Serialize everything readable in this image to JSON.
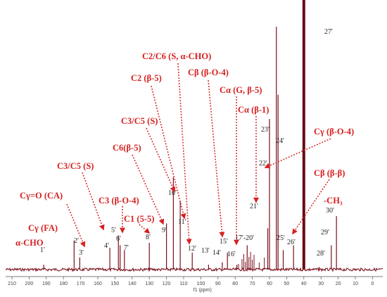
{
  "colors": {
    "spectrum": "#7a0f1c",
    "annotation": "#d62020",
    "peak_label": "#222222",
    "axis": "#555555",
    "solvent": "#6b0a12"
  },
  "chart_data": {
    "type": "line",
    "title": "",
    "xlabel": "f1 (ppm)",
    "ylabel": "",
    "x_reversed": true,
    "xlim": [
      215,
      -5
    ],
    "ticks": [
      210,
      200,
      190,
      180,
      170,
      160,
      150,
      140,
      130,
      120,
      110,
      100,
      90,
      80,
      70,
      60,
      50,
      40,
      30,
      20,
      10,
      0
    ],
    "solvent_peak": {
      "ppm": 40.0,
      "label": "27'"
    },
    "peaks": [
      {
        "label": "1'",
        "ppm": 191.5,
        "height": 0.02
      },
      {
        "label": "2'",
        "ppm": 173.8,
        "height": 0.12
      },
      {
        "label": "3'",
        "ppm": 170.5,
        "height": 0.05
      },
      {
        "label": "4'",
        "ppm": 153.0,
        "height": 0.09
      },
      {
        "label": "5'",
        "ppm": 148.0,
        "height": 0.14
      },
      {
        "label": "6'",
        "ppm": 147.0,
        "height": 0.1
      },
      {
        "label": "7'",
        "ppm": 144.5,
        "height": 0.08
      },
      {
        "label": "8'",
        "ppm": 130.0,
        "height": 0.11
      },
      {
        "label": "9'",
        "ppm": 120.0,
        "height": 0.19
      },
      {
        "label": "10'",
        "ppm": 116.0,
        "height": 0.38
      },
      {
        "label": "11'",
        "ppm": 112.0,
        "height": 0.28
      },
      {
        "label": "12'",
        "ppm": 105.0,
        "height": 0.07
      },
      {
        "label": "13'",
        "ppm": 95.5,
        "height": 0.02
      },
      {
        "label": "14'",
        "ppm": 87.5,
        "height": 0.03
      },
      {
        "label": "15'",
        "ppm": 84.5,
        "height": 0.07
      },
      {
        "label": "16'",
        "ppm": 79.0,
        "height": 0.02
      },
      {
        "label": "17'-20'",
        "ppm": 73.0,
        "height": 0.1
      },
      {
        "label": "21'",
        "ppm": 61.0,
        "height": 0.17
      },
      {
        "label": "22'",
        "ppm": 60.0,
        "height": 0.62
      },
      {
        "label": "23'",
        "ppm": 56.0,
        "height": 1.0
      },
      {
        "label": "24'",
        "ppm": 55.0,
        "height": 0.72
      },
      {
        "label": "25'",
        "ppm": 52.0,
        "height": 0.08
      },
      {
        "label": "26'",
        "ppm": 46.0,
        "height": 0.1
      },
      {
        "label": "28'",
        "ppm": 31.0,
        "height": 0.01
      },
      {
        "label": "29'",
        "ppm": 24.0,
        "height": 0.1
      },
      {
        "label": "30'",
        "ppm": 21.0,
        "height": 0.22
      }
    ],
    "annotations": [
      {
        "text": "α-CHO",
        "target_ppm": 191.5
      },
      {
        "text": "Cγ (FA)",
        "target_ppm": 173.8
      },
      {
        "text": "Cγ=O (CA)",
        "target_ppm": 170.5
      },
      {
        "text": "C3/C5 (S)",
        "target_ppm": 153.0
      },
      {
        "text": "C3 (β-O-4)",
        "target_ppm": 147.0
      },
      {
        "text": "C1 (5-5)",
        "target_ppm": 133.0
      },
      {
        "text": "C6(β-5)",
        "target_ppm": 119.5
      },
      {
        "text": "C3/C5 (S)",
        "target_ppm": 113.5
      },
      {
        "text": "C2 (β-5)",
        "target_ppm": 111.5
      },
      {
        "text": "C2/C6 (S, α-CHO)",
        "target_ppm": 104.5
      },
      {
        "text": "Cβ (β-O-4)",
        "target_ppm": 84.5
      },
      {
        "text": "Cα (G, β-5)",
        "target_ppm": 80.0
      },
      {
        "text": "Cα (β-1)",
        "target_ppm": 62.5
      },
      {
        "text": "Cγ (β-O-4)",
        "target_ppm": 60.0
      },
      {
        "text": "Cβ (β-β)",
        "target_ppm": 52.5
      },
      {
        "text": "-CH₃",
        "target_ppm": null
      }
    ]
  }
}
